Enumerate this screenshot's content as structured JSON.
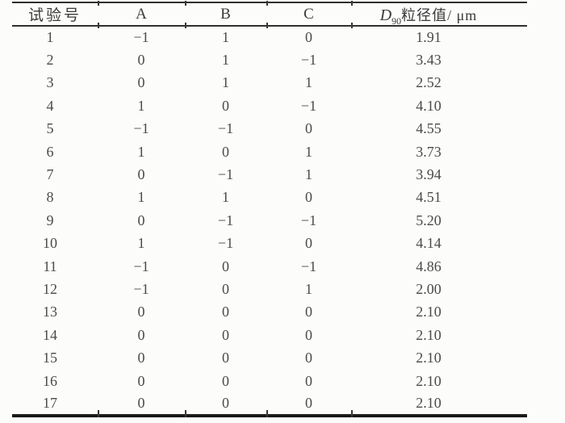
{
  "page": {
    "background": "#fcfcfb",
    "text_color": "#4a4a4a",
    "rule_color": "#2f2f2f"
  },
  "table": {
    "header": {
      "col_no": "试验号",
      "col_a": "A",
      "col_b": "B",
      "col_c": "C",
      "col_d90_base": "D",
      "col_d90_sub": "90",
      "col_d90_rest": "粒径值/ μm"
    },
    "rows": [
      [
        "1",
        "−1",
        "1",
        "0",
        "1.91"
      ],
      [
        "2",
        "0",
        "1",
        "−1",
        "3.43"
      ],
      [
        "3",
        "0",
        "1",
        "1",
        "2.52"
      ],
      [
        "4",
        "1",
        "0",
        "−1",
        "4.10"
      ],
      [
        "5",
        "−1",
        "−1",
        "0",
        "4.55"
      ],
      [
        "6",
        "1",
        "0",
        "1",
        "3.73"
      ],
      [
        "7",
        "0",
        "−1",
        "1",
        "3.94"
      ],
      [
        "8",
        "1",
        "1",
        "0",
        "4.51"
      ],
      [
        "9",
        "0",
        "−1",
        "−1",
        "5.20"
      ],
      [
        "10",
        "1",
        "−1",
        "0",
        "4.14"
      ],
      [
        "11",
        "−1",
        "0",
        "−1",
        "4.86"
      ],
      [
        "12",
        "−1",
        "0",
        "1",
        "2.00"
      ],
      [
        "13",
        "0",
        "0",
        "0",
        "2.10"
      ],
      [
        "14",
        "0",
        "0",
        "0",
        "2.10"
      ],
      [
        "15",
        "0",
        "0",
        "0",
        "2.10"
      ],
      [
        "16",
        "0",
        "0",
        "0",
        "2.10"
      ],
      [
        "17",
        "0",
        "0",
        "0",
        "2.10"
      ]
    ]
  }
}
